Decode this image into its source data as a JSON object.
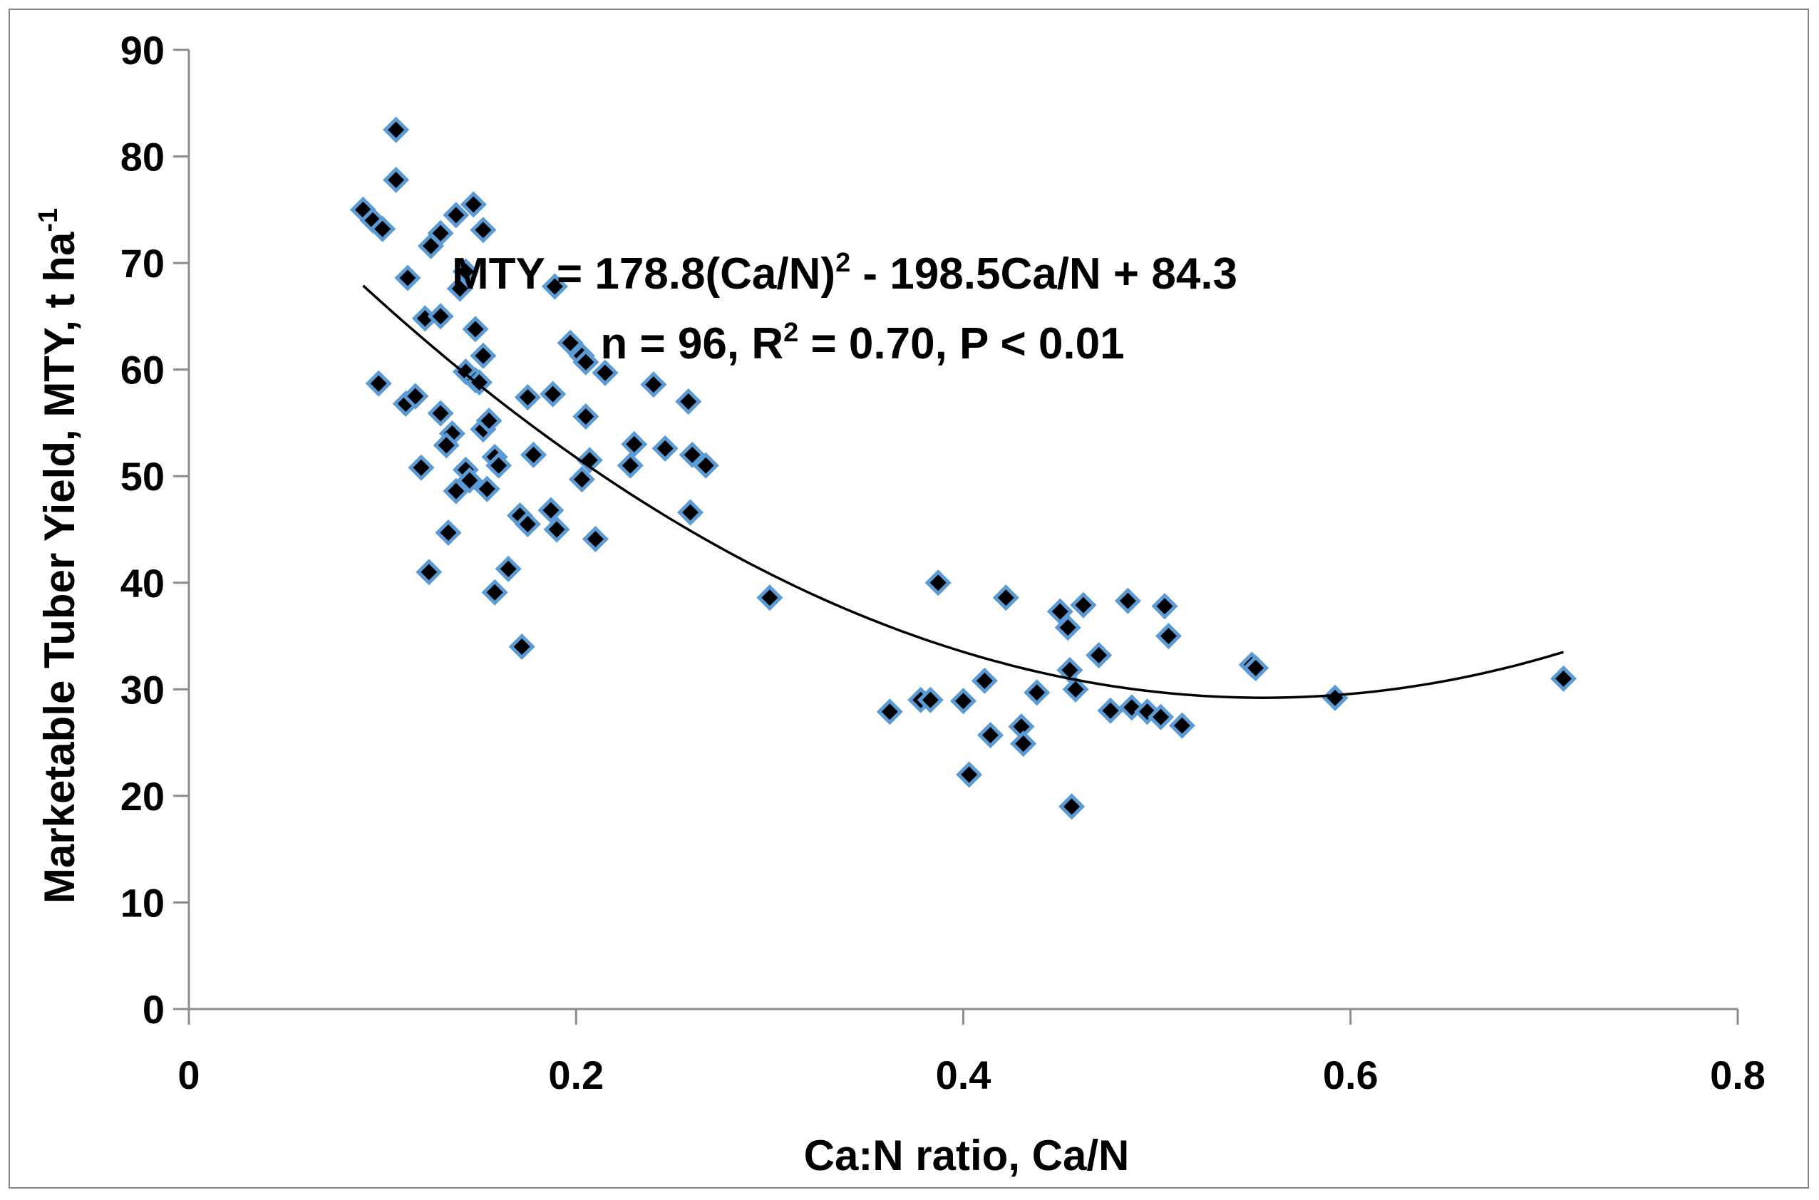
{
  "chart_data": {
    "type": "scatter",
    "title": "",
    "xlabel": "Ca:N ratio, Ca/N",
    "ylabel": {
      "text": "Marketable Tuber Yield, MTY, t ha",
      "superscript": "-1"
    },
    "xlim": [
      0,
      0.8
    ],
    "ylim": [
      0,
      90
    ],
    "x_ticks": [
      0,
      0.2,
      0.4,
      0.6,
      0.8
    ],
    "x_tick_labels": [
      "0",
      "0.2",
      "0.4",
      "0.6",
      "0.8"
    ],
    "y_ticks": [
      0,
      10,
      20,
      30,
      40,
      50,
      60,
      70,
      80,
      90
    ],
    "y_tick_labels": [
      "0",
      "10",
      "20",
      "30",
      "40",
      "50",
      "60",
      "70",
      "80",
      "90"
    ],
    "grid": false,
    "legend": "none",
    "marker": {
      "shape": "diamond",
      "fill": "#000000",
      "edge": "#5b9bd5"
    },
    "trendline": {
      "type": "polynomial-2",
      "coefficients": {
        "a": 178.8,
        "b": -198.5,
        "c": 84.3
      },
      "x_range": [
        0.09,
        0.71
      ],
      "color": "#000000"
    },
    "annotations": {
      "equation": {
        "prefix": "MTY = 178.8(Ca/N)",
        "sup": "2",
        "suffix": " - 198.5Ca/N + 84.3"
      },
      "stats": {
        "prefix": "n = 96, R",
        "sup": "2",
        "suffix": " = 0.70, P < 0.01"
      }
    },
    "points": [
      [
        0.09,
        75.0
      ],
      [
        0.095,
        74.0
      ],
      [
        0.1,
        73.2
      ],
      [
        0.107,
        82.5
      ],
      [
        0.107,
        77.8
      ],
      [
        0.098,
        58.7
      ],
      [
        0.112,
        56.8
      ],
      [
        0.117,
        57.5
      ],
      [
        0.12,
        50.8
      ],
      [
        0.124,
        41.0
      ],
      [
        0.113,
        68.6
      ],
      [
        0.125,
        71.6
      ],
      [
        0.13,
        72.8
      ],
      [
        0.138,
        74.5
      ],
      [
        0.147,
        75.5
      ],
      [
        0.152,
        73.1
      ],
      [
        0.122,
        64.8
      ],
      [
        0.13,
        65.0
      ],
      [
        0.14,
        67.6
      ],
      [
        0.143,
        69.2
      ],
      [
        0.148,
        63.8
      ],
      [
        0.152,
        61.3
      ],
      [
        0.143,
        59.8
      ],
      [
        0.148,
        59.0
      ],
      [
        0.15,
        58.8
      ],
      [
        0.13,
        55.9
      ],
      [
        0.136,
        54.0
      ],
      [
        0.133,
        52.9
      ],
      [
        0.152,
        54.4
      ],
      [
        0.155,
        55.2
      ],
      [
        0.158,
        51.8
      ],
      [
        0.16,
        51.0
      ],
      [
        0.143,
        50.6
      ],
      [
        0.138,
        48.6
      ],
      [
        0.145,
        49.6
      ],
      [
        0.154,
        48.8
      ],
      [
        0.134,
        44.7
      ],
      [
        0.158,
        39.1
      ],
      [
        0.165,
        41.3
      ],
      [
        0.171,
        46.3
      ],
      [
        0.175,
        45.5
      ],
      [
        0.172,
        34.0
      ],
      [
        0.178,
        52.0
      ],
      [
        0.175,
        57.4
      ],
      [
        0.188,
        57.7
      ],
      [
        0.187,
        46.8
      ],
      [
        0.19,
        45.0
      ],
      [
        0.189,
        67.8
      ],
      [
        0.197,
        62.5
      ],
      [
        0.203,
        61.3
      ],
      [
        0.205,
        60.7
      ],
      [
        0.215,
        59.7
      ],
      [
        0.205,
        55.6
      ],
      [
        0.207,
        51.5
      ],
      [
        0.203,
        49.7
      ],
      [
        0.21,
        44.1
      ],
      [
        0.228,
        51.0
      ],
      [
        0.23,
        53.0
      ],
      [
        0.24,
        58.6
      ],
      [
        0.246,
        52.6
      ],
      [
        0.258,
        57.0
      ],
      [
        0.26,
        52.0
      ],
      [
        0.267,
        51.0
      ],
      [
        0.259,
        46.6
      ],
      [
        0.3,
        38.6
      ],
      [
        0.362,
        27.9
      ],
      [
        0.378,
        29.0
      ],
      [
        0.383,
        29.0
      ],
      [
        0.387,
        40.0
      ],
      [
        0.4,
        28.9
      ],
      [
        0.403,
        22.0
      ],
      [
        0.411,
        30.8
      ],
      [
        0.414,
        25.7
      ],
      [
        0.422,
        38.6
      ],
      [
        0.43,
        26.5
      ],
      [
        0.431,
        24.9
      ],
      [
        0.438,
        29.7
      ],
      [
        0.45,
        37.3
      ],
      [
        0.454,
        35.8
      ],
      [
        0.455,
        31.8
      ],
      [
        0.458,
        30.0
      ],
      [
        0.462,
        37.9
      ],
      [
        0.47,
        33.2
      ],
      [
        0.476,
        28.0
      ],
      [
        0.485,
        38.3
      ],
      [
        0.487,
        28.3
      ],
      [
        0.495,
        27.9
      ],
      [
        0.502,
        27.4
      ],
      [
        0.504,
        37.8
      ],
      [
        0.506,
        35.0
      ],
      [
        0.513,
        26.6
      ],
      [
        0.549,
        32.3
      ],
      [
        0.551,
        32.0
      ],
      [
        0.456,
        19.0
      ],
      [
        0.592,
        29.2
      ],
      [
        0.71,
        31.0
      ]
    ]
  }
}
